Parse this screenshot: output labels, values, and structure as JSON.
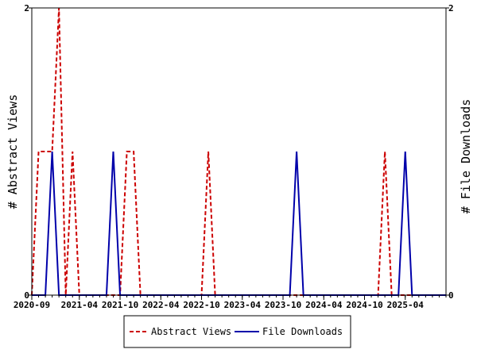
{
  "chart_data": {
    "type": "line",
    "title": "",
    "y_left_label": "# Abstract Views",
    "y_right_label": "# File Downloads",
    "ylim": [
      0,
      2
    ],
    "y_ticks": [
      "0",
      "2"
    ],
    "x_tick_labels": [
      "2020-09",
      "2021-04",
      "2021-10",
      "2022-04",
      "2022-10",
      "2023-04",
      "2023-10",
      "2024-04",
      "2024-10",
      "2025-04"
    ],
    "x_range": [
      "2020-09",
      "2025-10"
    ],
    "legend_position": "bottom-center",
    "series": [
      {
        "name": "Abstract Views",
        "color": "#cc0000",
        "style": "dashed",
        "axis": "left",
        "points": [
          [
            "2020-09",
            0
          ],
          [
            "2020-10",
            1
          ],
          [
            "2020-11",
            1
          ],
          [
            "2020-12",
            1
          ],
          [
            "2021-01",
            2
          ],
          [
            "2021-02",
            0
          ],
          [
            "2021-03",
            1
          ],
          [
            "2021-04",
            0
          ],
          [
            "2021-05",
            0
          ],
          [
            "2021-06",
            0
          ],
          [
            "2021-07",
            0
          ],
          [
            "2021-08",
            0
          ],
          [
            "2021-09",
            0
          ],
          [
            "2021-10",
            0
          ],
          [
            "2021-11",
            1
          ],
          [
            "2021-12",
            1
          ],
          [
            "2022-01",
            0
          ],
          [
            "2022-02",
            0
          ],
          [
            "2022-03",
            0
          ],
          [
            "2022-04",
            0
          ],
          [
            "2022-05",
            0
          ],
          [
            "2022-06",
            0
          ],
          [
            "2022-07",
            0
          ],
          [
            "2022-08",
            0
          ],
          [
            "2022-09",
            0
          ],
          [
            "2022-10",
            0
          ],
          [
            "2022-11",
            1
          ],
          [
            "2022-12",
            0
          ],
          [
            "2023-01",
            0
          ],
          [
            "2023-02",
            0
          ],
          [
            "2023-03",
            0
          ],
          [
            "2023-04",
            0
          ],
          [
            "2023-05",
            0
          ],
          [
            "2023-06",
            0
          ],
          [
            "2023-07",
            0
          ],
          [
            "2023-08",
            0
          ],
          [
            "2023-09",
            0
          ],
          [
            "2023-10",
            0
          ],
          [
            "2023-11",
            0
          ],
          [
            "2023-12",
            0
          ],
          [
            "2024-01",
            0
          ],
          [
            "2024-02",
            0
          ],
          [
            "2024-03",
            0
          ],
          [
            "2024-04",
            0
          ],
          [
            "2024-05",
            0
          ],
          [
            "2024-06",
            0
          ],
          [
            "2024-07",
            0
          ],
          [
            "2024-08",
            0
          ],
          [
            "2024-09",
            0
          ],
          [
            "2024-10",
            0
          ],
          [
            "2024-11",
            0
          ],
          [
            "2024-12",
            0
          ],
          [
            "2025-01",
            1
          ],
          [
            "2025-02",
            0
          ],
          [
            "2025-03",
            0
          ],
          [
            "2025-04",
            0
          ],
          [
            "2025-05",
            0
          ],
          [
            "2025-06",
            0
          ],
          [
            "2025-07",
            0
          ],
          [
            "2025-08",
            0
          ],
          [
            "2025-09",
            0
          ],
          [
            "2025-10",
            0
          ]
        ]
      },
      {
        "name": "File Downloads",
        "color": "#0000aa",
        "style": "solid",
        "axis": "right",
        "points": [
          [
            "2020-09",
            0
          ],
          [
            "2020-10",
            0
          ],
          [
            "2020-11",
            0
          ],
          [
            "2020-12",
            1
          ],
          [
            "2021-01",
            0
          ],
          [
            "2021-02",
            0
          ],
          [
            "2021-03",
            0
          ],
          [
            "2021-04",
            0
          ],
          [
            "2021-05",
            0
          ],
          [
            "2021-06",
            0
          ],
          [
            "2021-07",
            0
          ],
          [
            "2021-08",
            0
          ],
          [
            "2021-09",
            1
          ],
          [
            "2021-10",
            0
          ],
          [
            "2021-11",
            0
          ],
          [
            "2021-12",
            0
          ],
          [
            "2022-01",
            0
          ],
          [
            "2022-02",
            0
          ],
          [
            "2022-03",
            0
          ],
          [
            "2022-04",
            0
          ],
          [
            "2022-05",
            0
          ],
          [
            "2022-06",
            0
          ],
          [
            "2022-07",
            0
          ],
          [
            "2022-08",
            0
          ],
          [
            "2022-09",
            0
          ],
          [
            "2022-10",
            0
          ],
          [
            "2022-11",
            0
          ],
          [
            "2022-12",
            0
          ],
          [
            "2023-01",
            0
          ],
          [
            "2023-02",
            0
          ],
          [
            "2023-03",
            0
          ],
          [
            "2023-04",
            0
          ],
          [
            "2023-05",
            0
          ],
          [
            "2023-06",
            0
          ],
          [
            "2023-07",
            0
          ],
          [
            "2023-08",
            0
          ],
          [
            "2023-09",
            0
          ],
          [
            "2023-10",
            0
          ],
          [
            "2023-11",
            0
          ],
          [
            "2023-12",
            1
          ],
          [
            "2024-01",
            0
          ],
          [
            "2024-02",
            0
          ],
          [
            "2024-03",
            0
          ],
          [
            "2024-04",
            0
          ],
          [
            "2024-05",
            0
          ],
          [
            "2024-06",
            0
          ],
          [
            "2024-07",
            0
          ],
          [
            "2024-08",
            0
          ],
          [
            "2024-09",
            0
          ],
          [
            "2024-10",
            0
          ],
          [
            "2024-11",
            0
          ],
          [
            "2024-12",
            0
          ],
          [
            "2025-01",
            0
          ],
          [
            "2025-02",
            0
          ],
          [
            "2025-03",
            0
          ],
          [
            "2025-04",
            1
          ],
          [
            "2025-05",
            0
          ],
          [
            "2025-06",
            0
          ],
          [
            "2025-07",
            0
          ],
          [
            "2025-08",
            0
          ],
          [
            "2025-09",
            0
          ],
          [
            "2025-10",
            0
          ]
        ]
      }
    ]
  }
}
